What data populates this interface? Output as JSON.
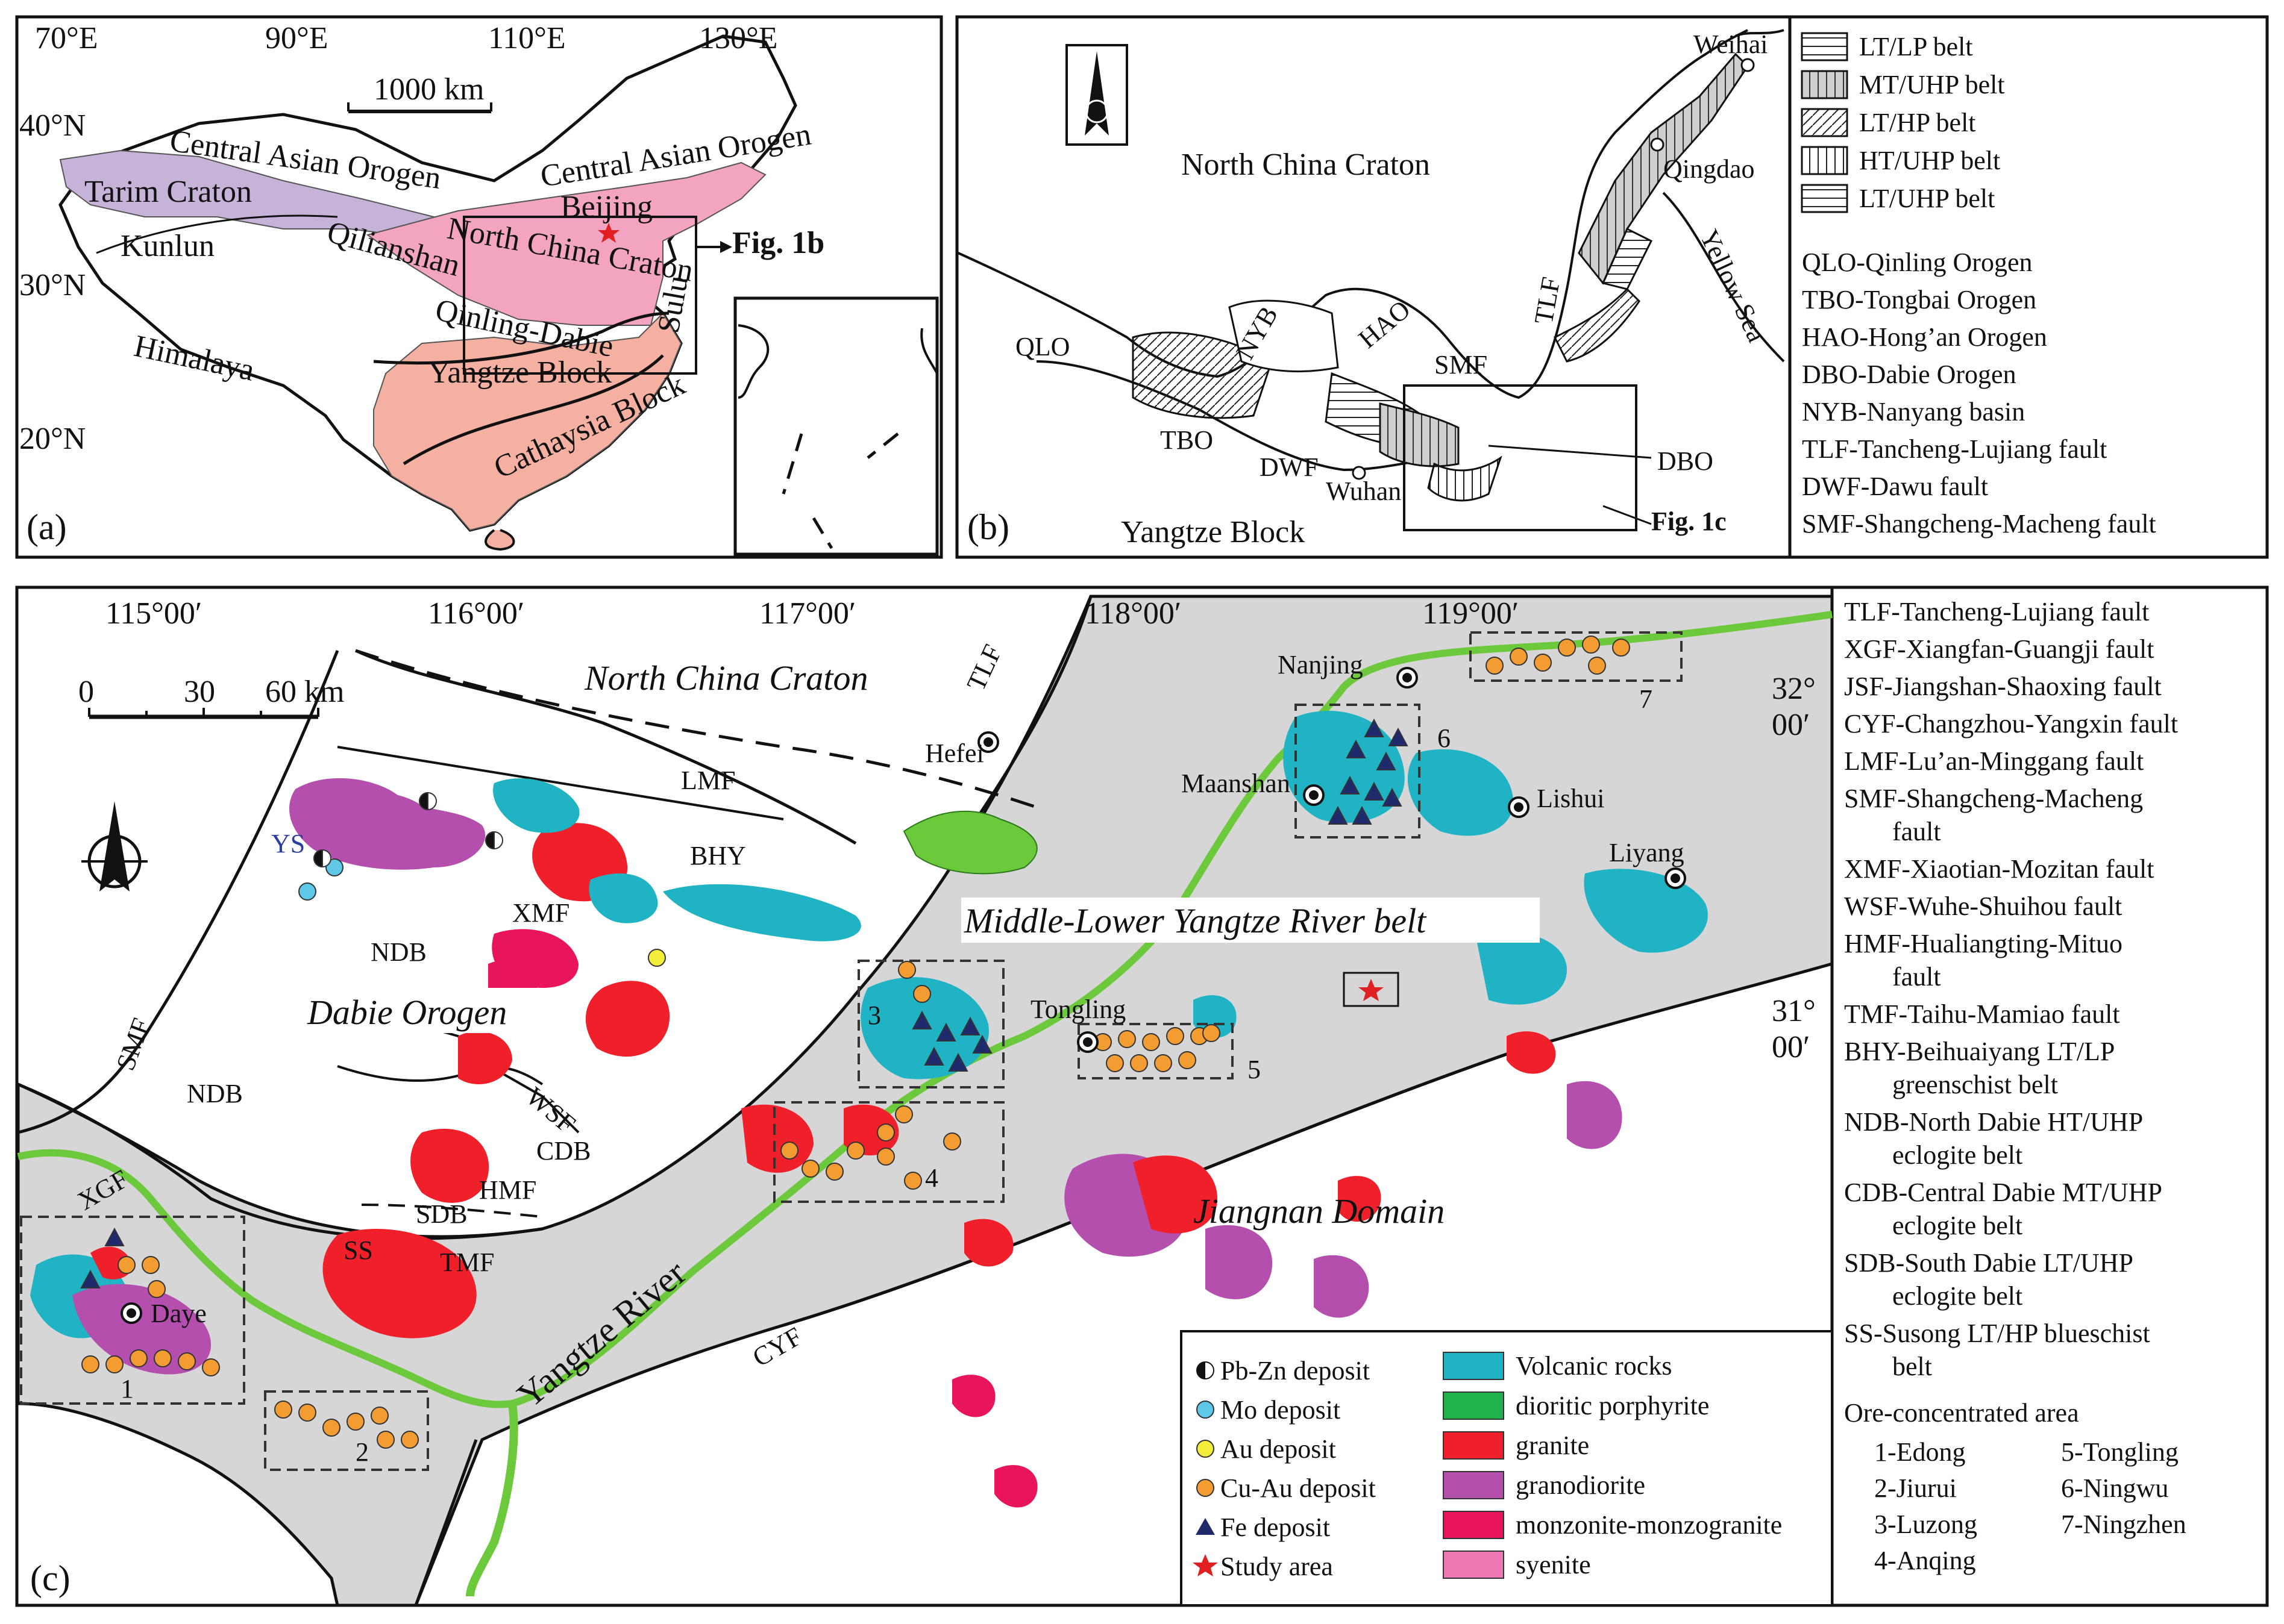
{
  "panel_a": {
    "label": "(a)",
    "lon_ticks": [
      "70°E",
      "90°E",
      "110°E",
      "130°E"
    ],
    "lat_ticks": [
      "40°N",
      "30°N",
      "20°N"
    ],
    "scale_label": "1000 km",
    "places": {
      "central_asian_orogen_w": "Central Asian Orogen",
      "central_asian_orogen_e": "Central Asian Orogen",
      "tarim": "Tarim Craton",
      "kunlun": "Kunlun",
      "qilianshan": "Qilianshan",
      "himalaya": "Himalaya",
      "north_china": "North China Craton",
      "beijing": "Beijing",
      "sulu": "Sulu",
      "qinling_dabie": "Qinling-Dabie",
      "yangtze": "Yangtze Block",
      "cathaysia": "Cathaysia Block"
    },
    "fig_ref": "Fig. 1b",
    "colors": {
      "tarim": "#c6b3d8",
      "north_china": "#f3a4c0",
      "yangtze": "#f4b0a0"
    }
  },
  "panel_b": {
    "label": "(b)",
    "places": {
      "north_china": "North China Craton",
      "yangtze": "Yangtze Block",
      "weihai": "Weihai",
      "qingdao": "Qingdao",
      "yellow_sea": "Yellow Sea",
      "qlo": "QLO",
      "nyb": "NYB",
      "hao": "HAO",
      "smf": "SMF",
      "tlf": "TLF",
      "tbo": "TBO",
      "dwf": "DWF",
      "wuhan": "Wuhan",
      "dbo": "DBO"
    },
    "fig_ref": "Fig. 1c"
  },
  "panel_b_legend": {
    "belts": [
      "LT/LP belt",
      "MT/UHP belt",
      "LT/HP belt",
      "HT/UHP belt",
      "LT/UHP belt"
    ],
    "abbreviations": [
      "QLO-Qinling Orogen",
      "TBO-Tongbai Orogen",
      "HAO-Hong’an Orogen",
      "DBO-Dabie Orogen",
      "NYB-Nanyang basin",
      "TLF-Tancheng-Lujiang fault",
      "DWF-Dawu fault",
      "SMF-Shangcheng-Macheng fault"
    ]
  },
  "panel_c": {
    "label": "(c)",
    "lon_ticks": [
      "115°00′",
      "116°00′",
      "117°00′",
      "118°00′",
      "119°00′"
    ],
    "lat_ticks_a": [
      "32°",
      "31°"
    ],
    "lat_ticks_b": [
      "00′",
      "00′"
    ],
    "scale_ticks": [
      "0",
      "30",
      "60 km"
    ],
    "regions": {
      "north_china": "North China Craton",
      "myrb": "Middle-Lower Yangtze River belt",
      "dabie": "Dabie Orogen",
      "jiangnan": "Jiangnan Domain",
      "river": "Yangtze River"
    },
    "faults": {
      "tlf": "TLF",
      "lmf": "LMF",
      "bhy": "BHY",
      "xmf": "XMF",
      "ndb1": "NDB",
      "ndb2": "NDB",
      "smf": "SMF",
      "wsf": "WSF",
      "cdb": "CDB",
      "hmf": "HMF",
      "sdb": "SDB",
      "tmf": "TMF",
      "ss": "SS",
      "xgf": "XGF",
      "cyf": "CYF",
      "ys": "YS"
    },
    "cities": [
      "Hefei",
      "Nanjing",
      "Maanshan",
      "Lishui",
      "Liyang",
      "Tongling",
      "Daye"
    ],
    "areas": [
      "1",
      "2",
      "3",
      "4",
      "5",
      "6",
      "7"
    ],
    "colors": {
      "volcanic": "#1fb3c4",
      "porphyrite": "#22b24c",
      "granite": "#f0202a",
      "granodiorite": "#b44fad",
      "monzonite": "#e8155a",
      "syenite": "#ee78b4",
      "belt_gray": "#d6d6d6",
      "river": "#6cc93c",
      "cuau": "#f39c32",
      "mo": "#5ec8e6",
      "au": "#f2ee3a",
      "fe": "#1f2a6c"
    }
  },
  "legend_c": {
    "deposits": [
      {
        "icon": "half-circle-icon",
        "label": "Pb-Zn deposit"
      },
      {
        "icon": "cyan-circle-icon",
        "label": "Mo deposit"
      },
      {
        "icon": "yellow-circle-icon",
        "label": "Au deposit"
      },
      {
        "icon": "orange-circle-icon",
        "label": "Cu-Au deposit"
      },
      {
        "icon": "triangle-icon",
        "label": "Fe deposit"
      },
      {
        "icon": "star-icon",
        "label": "Study area"
      }
    ],
    "rocks": [
      {
        "color": "#1fb3c4",
        "label": "Volcanic rocks"
      },
      {
        "color": "#22b24c",
        "label": "dioritic porphyrite"
      },
      {
        "color": "#f0202a",
        "label": "granite"
      },
      {
        "color": "#b44fad",
        "label": "granodiorite"
      },
      {
        "color": "#e8155a",
        "label": "monzonite-monzogranite"
      },
      {
        "color": "#ee78b4",
        "label": "syenite"
      }
    ]
  },
  "legend_right": {
    "faults": [
      [
        "TLF-Tancheng-Lujiang fault"
      ],
      [
        "XGF-Xiangfan-Guangji fault"
      ],
      [
        "JSF-Jiangshan-Shaoxing fault"
      ],
      [
        "CYF-Changzhou-Yangxin fault"
      ],
      [
        "LMF-Lu’an-Minggang fault"
      ],
      [
        "SMF-Shangcheng-Macheng",
        "fault"
      ],
      [
        "XMF-Xiaotian-Mozitan fault"
      ],
      [
        "WSF-Wuhe-Shuihou fault"
      ],
      [
        "HMF-Hualiangting-Mituo",
        "fault"
      ],
      [
        "TMF-Taihu-Mamiao fault"
      ],
      [
        "BHY-Beihuaiyang LT/LP",
        "greenschist belt"
      ],
      [
        "NDB-North Dabie HT/UHP",
        "eclogite belt"
      ],
      [
        "CDB-Central Dabie MT/UHP",
        "eclogite belt"
      ],
      [
        "SDB-South Dabie LT/UHP",
        "eclogite belt"
      ],
      [
        "SS-Susong LT/HP blueschist",
        "belt"
      ]
    ],
    "ore_title": "Ore-concentrated area",
    "ore_left": [
      "1-Edong",
      "2-Jiurui",
      "3-Luzong",
      "4-Anqing"
    ],
    "ore_right": [
      "5-Tongling",
      "6-Ningwu",
      "7-Ningzhen"
    ]
  }
}
